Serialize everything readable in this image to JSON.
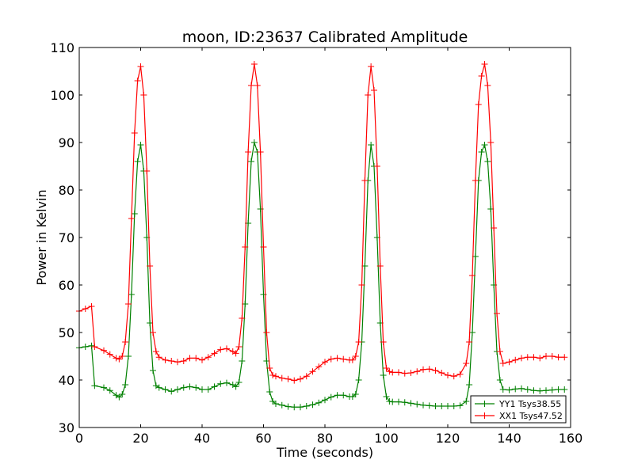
{
  "chart_data": {
    "type": "line",
    "title": "moon, ID:23637 Calibrated Amplitude",
    "xlabel": "Time (seconds)",
    "ylabel": "Power in Kelvin",
    "xlim": [
      0,
      160
    ],
    "ylim": [
      30,
      110
    ],
    "xticks": [
      0,
      20,
      40,
      60,
      80,
      100,
      120,
      140,
      160
    ],
    "yticks": [
      30,
      40,
      50,
      60,
      70,
      80,
      90,
      100,
      110
    ],
    "grid": false,
    "legend_position": "lower-right",
    "marker": "+",
    "series": [
      {
        "name": "YY1 Tsys38.55",
        "color": "#008000",
        "x": [
          0,
          2,
          4,
          5,
          8,
          10,
          12,
          13,
          14,
          15,
          16,
          17,
          18,
          19,
          20,
          21,
          22,
          23,
          24,
          25,
          26,
          28,
          30,
          32,
          34,
          36,
          38,
          40,
          42,
          44,
          46,
          48,
          50,
          51,
          52,
          53,
          54,
          55,
          56,
          57,
          58,
          59,
          60,
          61,
          62,
          63,
          64,
          66,
          68,
          70,
          72,
          74,
          76,
          78,
          80,
          82,
          84,
          86,
          88,
          89,
          90,
          91,
          92,
          93,
          94,
          95,
          96,
          97,
          98,
          99,
          100,
          101,
          102,
          104,
          106,
          108,
          110,
          112,
          114,
          116,
          118,
          120,
          122,
          124,
          126,
          127,
          128,
          129,
          130,
          131,
          132,
          133,
          134,
          135,
          136,
          137,
          138,
          140,
          142,
          144,
          146,
          148,
          150,
          152,
          154,
          156,
          158
        ],
        "y": [
          46.8,
          47.0,
          47.2,
          38.8,
          38.4,
          37.8,
          36.8,
          36.4,
          37.0,
          39.0,
          45.0,
          58.0,
          75.0,
          86.0,
          89.5,
          84.0,
          70.0,
          52.0,
          42.0,
          38.8,
          38.4,
          38.0,
          37.6,
          38.0,
          38.4,
          38.6,
          38.4,
          38.0,
          38.0,
          38.6,
          39.2,
          39.4,
          39.0,
          38.6,
          39.5,
          44.0,
          56.0,
          73.0,
          86.0,
          90.0,
          88.0,
          76.0,
          58.0,
          44.0,
          37.5,
          35.5,
          35.0,
          34.7,
          34.4,
          34.3,
          34.3,
          34.5,
          34.8,
          35.2,
          35.8,
          36.4,
          36.8,
          36.8,
          36.5,
          36.5,
          37.0,
          40.0,
          48.0,
          64.0,
          82.0,
          89.5,
          85.0,
          70.0,
          52.0,
          41.0,
          36.5,
          35.5,
          35.4,
          35.4,
          35.3,
          35.1,
          34.9,
          34.7,
          34.6,
          34.5,
          34.5,
          34.5,
          34.5,
          34.6,
          35.5,
          39.0,
          50.0,
          66.0,
          82.0,
          88.0,
          89.5,
          86.0,
          76.0,
          60.0,
          46.0,
          40.0,
          38.0,
          37.9,
          38.1,
          38.2,
          38.0,
          37.8,
          37.7,
          37.8,
          37.9,
          38.0,
          38.0
        ]
      },
      {
        "name": "XX1 Tsys47.52",
        "color": "#ff0000",
        "x": [
          0,
          2,
          4,
          5,
          8,
          10,
          12,
          13,
          14,
          15,
          16,
          17,
          18,
          19,
          20,
          21,
          22,
          23,
          24,
          25,
          26,
          28,
          30,
          32,
          34,
          36,
          38,
          40,
          42,
          44,
          46,
          48,
          50,
          51,
          52,
          53,
          54,
          55,
          56,
          57,
          58,
          59,
          60,
          61,
          62,
          63,
          64,
          66,
          68,
          70,
          72,
          74,
          76,
          78,
          80,
          82,
          84,
          86,
          88,
          89,
          90,
          91,
          92,
          93,
          94,
          95,
          96,
          97,
          98,
          99,
          100,
          101,
          102,
          104,
          106,
          108,
          110,
          112,
          114,
          116,
          118,
          120,
          122,
          124,
          126,
          127,
          128,
          129,
          130,
          131,
          132,
          133,
          134,
          135,
          136,
          137,
          138,
          140,
          142,
          144,
          146,
          148,
          150,
          152,
          154,
          156,
          158
        ],
        "y": [
          54.5,
          55.0,
          55.5,
          47.0,
          46.2,
          45.4,
          44.6,
          44.4,
          45.0,
          48.0,
          56.0,
          74.0,
          92.0,
          103.0,
          106.0,
          100.0,
          84.0,
          64.0,
          50.0,
          46.0,
          44.8,
          44.2,
          44.0,
          43.8,
          44.0,
          44.6,
          44.6,
          44.2,
          44.8,
          45.6,
          46.4,
          46.6,
          46.0,
          45.6,
          47.0,
          53.0,
          68.0,
          88.0,
          102.0,
          106.5,
          102.0,
          88.0,
          68.0,
          50.0,
          42.5,
          41.0,
          40.8,
          40.4,
          40.2,
          39.9,
          40.2,
          40.8,
          41.8,
          42.8,
          43.8,
          44.4,
          44.6,
          44.4,
          44.2,
          44.2,
          45.0,
          48.0,
          60.0,
          82.0,
          100.0,
          106.0,
          101.0,
          85.0,
          64.0,
          48.0,
          42.5,
          41.8,
          41.6,
          41.6,
          41.4,
          41.5,
          41.8,
          42.2,
          42.3,
          42.0,
          41.5,
          41.0,
          40.8,
          41.2,
          43.5,
          48.0,
          62.0,
          82.0,
          98.0,
          104.0,
          106.5,
          102.0,
          90.0,
          72.0,
          54.0,
          46.0,
          43.5,
          43.8,
          44.2,
          44.6,
          44.8,
          44.8,
          44.6,
          45.0,
          45.0,
          44.8,
          44.8
        ]
      }
    ]
  }
}
